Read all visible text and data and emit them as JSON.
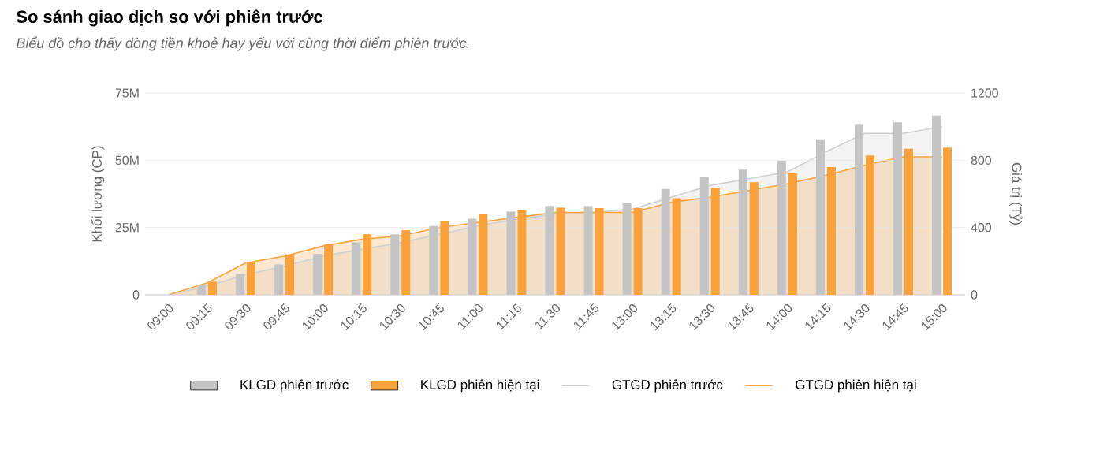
{
  "chart_data": {
    "type": "bar",
    "title": "So sánh giao dịch so với phiên trước",
    "subtitle": "Biểu đồ cho thấy dòng tiền khoẻ hay yếu với cùng thời điểm phiên trước.",
    "ylabel": "Khối lượng (CP)",
    "y2label": "Giá trị (Tỷ)",
    "categories": [
      "09:00",
      "09:15",
      "09:30",
      "09:45",
      "10:00",
      "10:15",
      "10:30",
      "10:45",
      "11:00",
      "11:15",
      "11:30",
      "11:45",
      "13:00",
      "13:15",
      "13:30",
      "13:45",
      "14:00",
      "14:15",
      "14:30",
      "14:45",
      "15:00"
    ],
    "series": [
      {
        "name": "KLGD phiên trước",
        "color": "#c4c4c4",
        "values": [
          0,
          3.5,
          7.8,
          11.3,
          15.2,
          19.5,
          22.5,
          25.6,
          28.3,
          30.9,
          33.0,
          33.0,
          34.0,
          39.3,
          43.9,
          46.5,
          49.8,
          57.8,
          63.5,
          64.1,
          66.6
        ]
      },
      {
        "name": "KLGD phiên hiện tại",
        "color": "#f9a13a",
        "values": [
          0,
          4.9,
          12.3,
          15.0,
          18.8,
          22.5,
          24.0,
          27.5,
          29.9,
          31.4,
          32.4,
          32.2,
          32.2,
          35.9,
          39.8,
          41.8,
          45.1,
          47.5,
          51.8,
          54.3,
          54.7
        ]
      },
      {
        "name": "GTGD phiên trước",
        "type": "area",
        "axis": "y2",
        "color": "#cfcfcf",
        "values": [
          0,
          50,
          120,
          170,
          230,
          270,
          310,
          360,
          410,
          450,
          480,
          490,
          510,
          580,
          650,
          690,
          730,
          850,
          960,
          960,
          1000
        ]
      },
      {
        "name": "GTGD phiên hiện tại",
        "type": "area",
        "axis": "y2",
        "color": "#f5a442",
        "values": [
          0,
          70,
          190,
          230,
          290,
          330,
          350,
          400,
          430,
          460,
          490,
          490,
          490,
          550,
          580,
          620,
          660,
          710,
          770,
          820,
          820
        ]
      }
    ],
    "ylim": [
      0,
      75
    ],
    "yticks": [
      0,
      {
        "value": 25,
        "label": "25M"
      },
      {
        "value": 50,
        "label": "50M"
      },
      {
        "value": 75,
        "label": "75M"
      }
    ],
    "y2lim": [
      0,
      1200
    ],
    "y2ticks": [
      0,
      400,
      800,
      1200
    ],
    "grid": "y",
    "legend": "bottom"
  }
}
